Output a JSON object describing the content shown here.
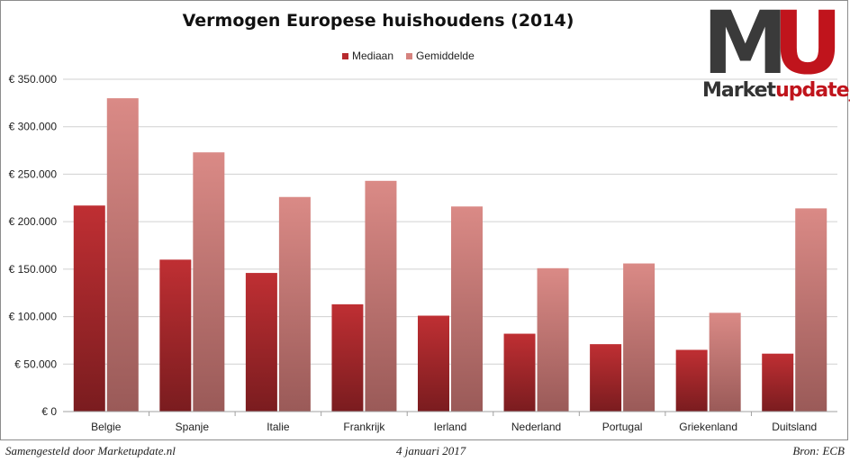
{
  "chart_data": {
    "type": "bar",
    "title": "Vermogen Europese huishoudens (2014)",
    "xlabel": "",
    "ylabel": "",
    "categories": [
      "Belgie",
      "Spanje",
      "Italie",
      "Frankrijk",
      "Ierland",
      "Nederland",
      "Portugal",
      "Griekenland",
      "Duitsland"
    ],
    "series": [
      {
        "name": "Mediaan",
        "color": "#b72a2e",
        "values": [
          217000,
          160000,
          146000,
          113000,
          101000,
          82000,
          71000,
          65000,
          61000
        ]
      },
      {
        "name": "Gemiddelde",
        "color": "#d6837f",
        "values": [
          330000,
          273000,
          226000,
          243000,
          216000,
          151000,
          156000,
          104000,
          214000
        ]
      }
    ],
    "ylim": [
      0,
      350000
    ],
    "yticks": [
      0,
      50000,
      100000,
      150000,
      200000,
      250000,
      300000,
      350000
    ],
    "ytick_labels": [
      "€ 0",
      "€ 50.000",
      "€ 100.000",
      "€ 150.000",
      "€ 200.000",
      "€ 250.000",
      "€ 300.000",
      "€ 350.000"
    ],
    "grid": true,
    "legend": "top-center"
  },
  "logo": {
    "letters_dark": "M",
    "letters_red": "U",
    "word_dark": "Market",
    "word_red": "update_"
  },
  "footer": {
    "left": "Samengesteld door Marketupdate.nl",
    "center": "4 januari 2017",
    "right": "Bron: ECB"
  }
}
